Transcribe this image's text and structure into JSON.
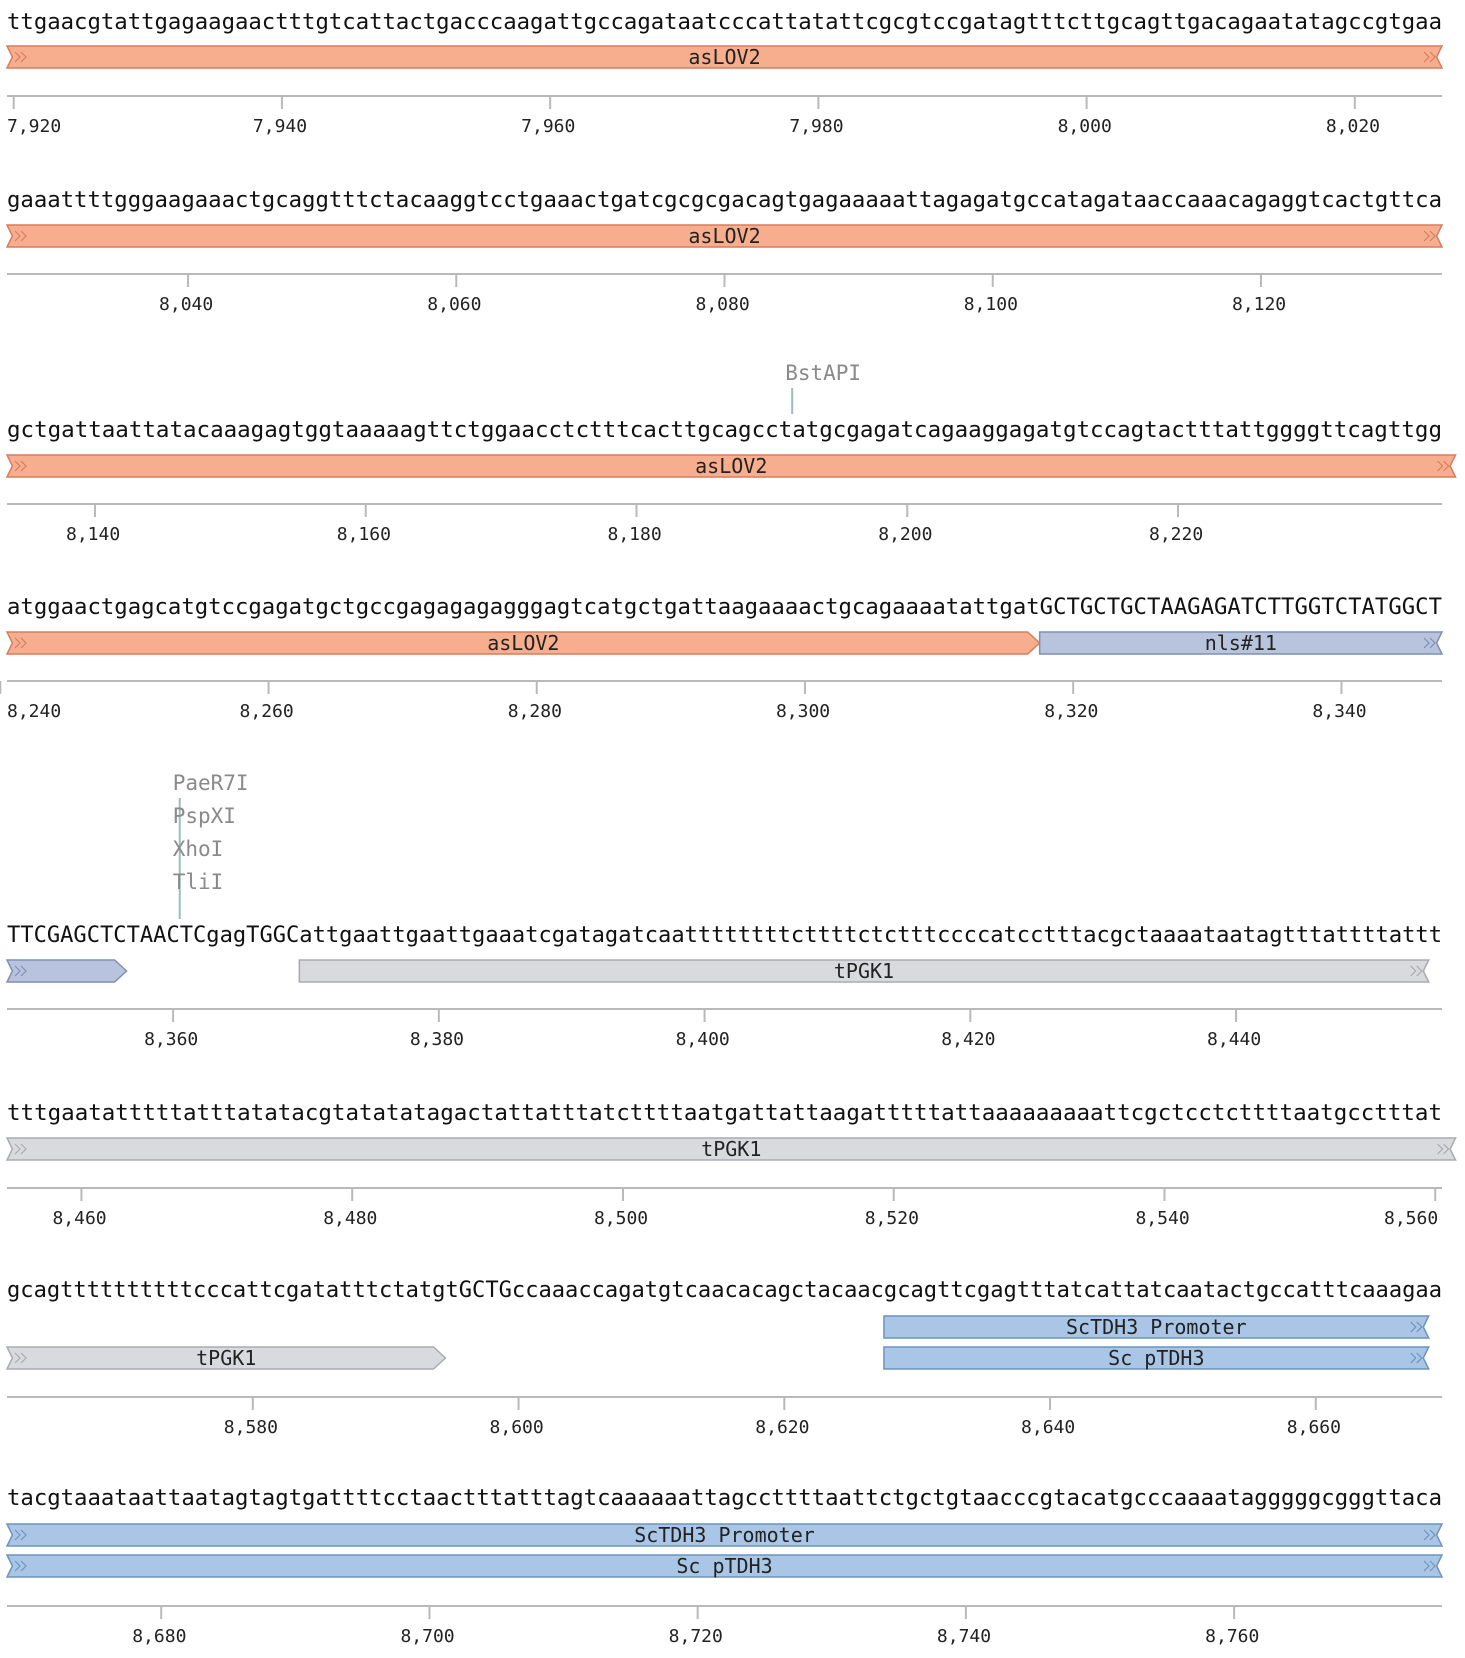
{
  "colors": {
    "asLOV2": "#f7ae8f",
    "asLOV2_stroke": "#d77d5c",
    "nls": "#b8c4de",
    "nls_stroke": "#7f8fb5",
    "tPGK1": "#d9dadd",
    "tPGK1_stroke": "#a9abb1",
    "tdh3": "#a9c6e6",
    "tdh3_stroke": "#6f93bf",
    "ruler": "#b9b9b9",
    "enzyme_line": "#9fbcbc"
  },
  "rows": [
    {
      "sequence": "ttgaacgtattgagaagaactttgtcattactgacccaagattgccagataatcccattatattcgcgtccgatagtttcttgcagttgacagaatatagccgtgaa",
      "start": 7919,
      "features": [
        {
          "label": "asLOV2",
          "color": "asLOV2",
          "lane": 0,
          "from": 7919,
          "to": 8026,
          "fwd": true,
          "open_left": true,
          "open_right": true
        }
      ],
      "ticks": [
        "7,920",
        "7,940",
        "7,960",
        "7,980",
        "8,000",
        "8,020"
      ],
      "enzymes": []
    },
    {
      "sequence": "gaaattttgggaagaaactgcaggtttctacaaggtcctgaaactgatcgcgcgacagtgagaaaaattagagatgccatagataaccaaacagaggtcactgttca",
      "start": 8026,
      "features": [
        {
          "label": "asLOV2",
          "color": "asLOV2",
          "lane": 0,
          "from": 8026,
          "to": 8133,
          "fwd": true,
          "open_left": true,
          "open_right": true
        }
      ],
      "ticks": [
        "8,040",
        "8,060",
        "8,080",
        "8,100",
        "8,120"
      ],
      "enzymes": []
    },
    {
      "sequence": "gctgattaattatacaaagagtggtaaaaagttctggaacctctttcacttgcagcctatgcgagatcagaaggagatgtccagtactttattggggttcagttgg",
      "start": 8133,
      "features": [
        {
          "label": "asLOV2",
          "color": "asLOV2",
          "lane": 0,
          "from": 8133,
          "to": 8240,
          "fwd": true,
          "open_left": true,
          "open_right": true
        }
      ],
      "ticks": [
        "8,140",
        "8,160",
        "8,180",
        "8,200",
        "8,220"
      ],
      "enzymes": [
        {
          "names": [
            "BstAPI"
          ],
          "pos": 8191
        }
      ]
    },
    {
      "sequence": "atggaactgagcatgtccgagatgctgccgagagagagggagtcatgctgattaagaaaactgcagaaaatattgatGCTGCTGCTAAGAGATCTTGGTCTATGGCT",
      "start": 8240,
      "features": [
        {
          "label": "asLOV2",
          "color": "asLOV2",
          "lane": 0,
          "from": 8240,
          "to": 8317,
          "fwd": true,
          "open_left": true,
          "open_right": false
        },
        {
          "label": "nls#11",
          "color": "nls",
          "lane": 0,
          "from": 8317,
          "to": 8347,
          "fwd": true,
          "open_left": false,
          "open_right": true
        }
      ],
      "ticks": [
        "8,240",
        "8,260",
        "8,280",
        "8,300",
        "8,320",
        "8,340"
      ],
      "enzymes": []
    },
    {
      "sequence": "TTCGAGCTCTAACTCgagTGGCattgaattgaattgaaatcgatagatcaattttttttcttttctctttccccatcctttacgctaaaataatagtttattttattt",
      "start": 8347,
      "features": [
        {
          "label": "",
          "color": "nls",
          "lane": 0,
          "from": 8347,
          "to": 8356,
          "fwd": true,
          "open_left": true,
          "open_right": false
        },
        {
          "label": "tPGK1",
          "color": "tPGK1",
          "lane": 0,
          "from": 8369,
          "to": 8454,
          "fwd": true,
          "open_left": false,
          "open_right": true
        }
      ],
      "ticks": [
        "8,360",
        "8,380",
        "8,400",
        "8,420",
        "8,440"
      ],
      "enzymes": [
        {
          "names": [
            "PaeR7I",
            "PspXI",
            "XhoI",
            "TliI"
          ],
          "pos": 8360
        }
      ]
    },
    {
      "sequence": "tttgaatatttttatttatatacgtatatatagactattatttatcttttaatgattattaagatttttattaaaaaaaaattcgctcctcttttaatgcctttat",
      "start": 8454,
      "features": [
        {
          "label": "tPGK1",
          "color": "tPGK1",
          "lane": 0,
          "from": 8454,
          "to": 8561,
          "fwd": true,
          "open_left": true,
          "open_right": true
        }
      ],
      "ticks": [
        "8,460",
        "8,480",
        "8,500",
        "8,520",
        "8,540",
        "8,560"
      ],
      "enzymes": []
    },
    {
      "sequence": "gcagttttttttttcccattcgatatttctatgtGCTGccaaaccagatgtcaacacagctacaacgcagttcgagtttatcattatcaatactgccatttcaaagaa",
      "start": 8561,
      "features": [
        {
          "label": "tPGK1",
          "color": "tPGK1",
          "lane": 1,
          "from": 8561,
          "to": 8594,
          "fwd": true,
          "open_left": true,
          "open_right": false
        },
        {
          "label": "ScTDH3 Promoter",
          "color": "tdh3",
          "lane": 0,
          "from": 8627,
          "to": 8668,
          "fwd": true,
          "open_left": false,
          "open_right": true
        },
        {
          "label": "Sc pTDH3",
          "color": "tdh3",
          "lane": 1,
          "from": 8627,
          "to": 8668,
          "fwd": true,
          "open_left": false,
          "open_right": true
        }
      ],
      "ticks": [
        "8,580",
        "8,600",
        "8,620",
        "8,640",
        "8,660"
      ],
      "enzymes": []
    },
    {
      "sequence": "tacgtaaataattaatagtagtgattttcctaactttatttagtcaaaaaattagccttttaattctgctgtaacccgtacatgcccaaaatagggggcgggttaca",
      "start": 8668,
      "features": [
        {
          "label": "ScTDH3 Promoter",
          "color": "tdh3",
          "lane": 0,
          "from": 8668,
          "to": 8775,
          "fwd": true,
          "open_left": true,
          "open_right": true
        },
        {
          "label": "Sc pTDH3",
          "color": "tdh3",
          "lane": 1,
          "from": 8668,
          "to": 8775,
          "fwd": true,
          "open_left": true,
          "open_right": true
        }
      ],
      "ticks": [
        "8,680",
        "8,700",
        "8,720",
        "8,740",
        "8,760"
      ],
      "enzymes": []
    }
  ]
}
